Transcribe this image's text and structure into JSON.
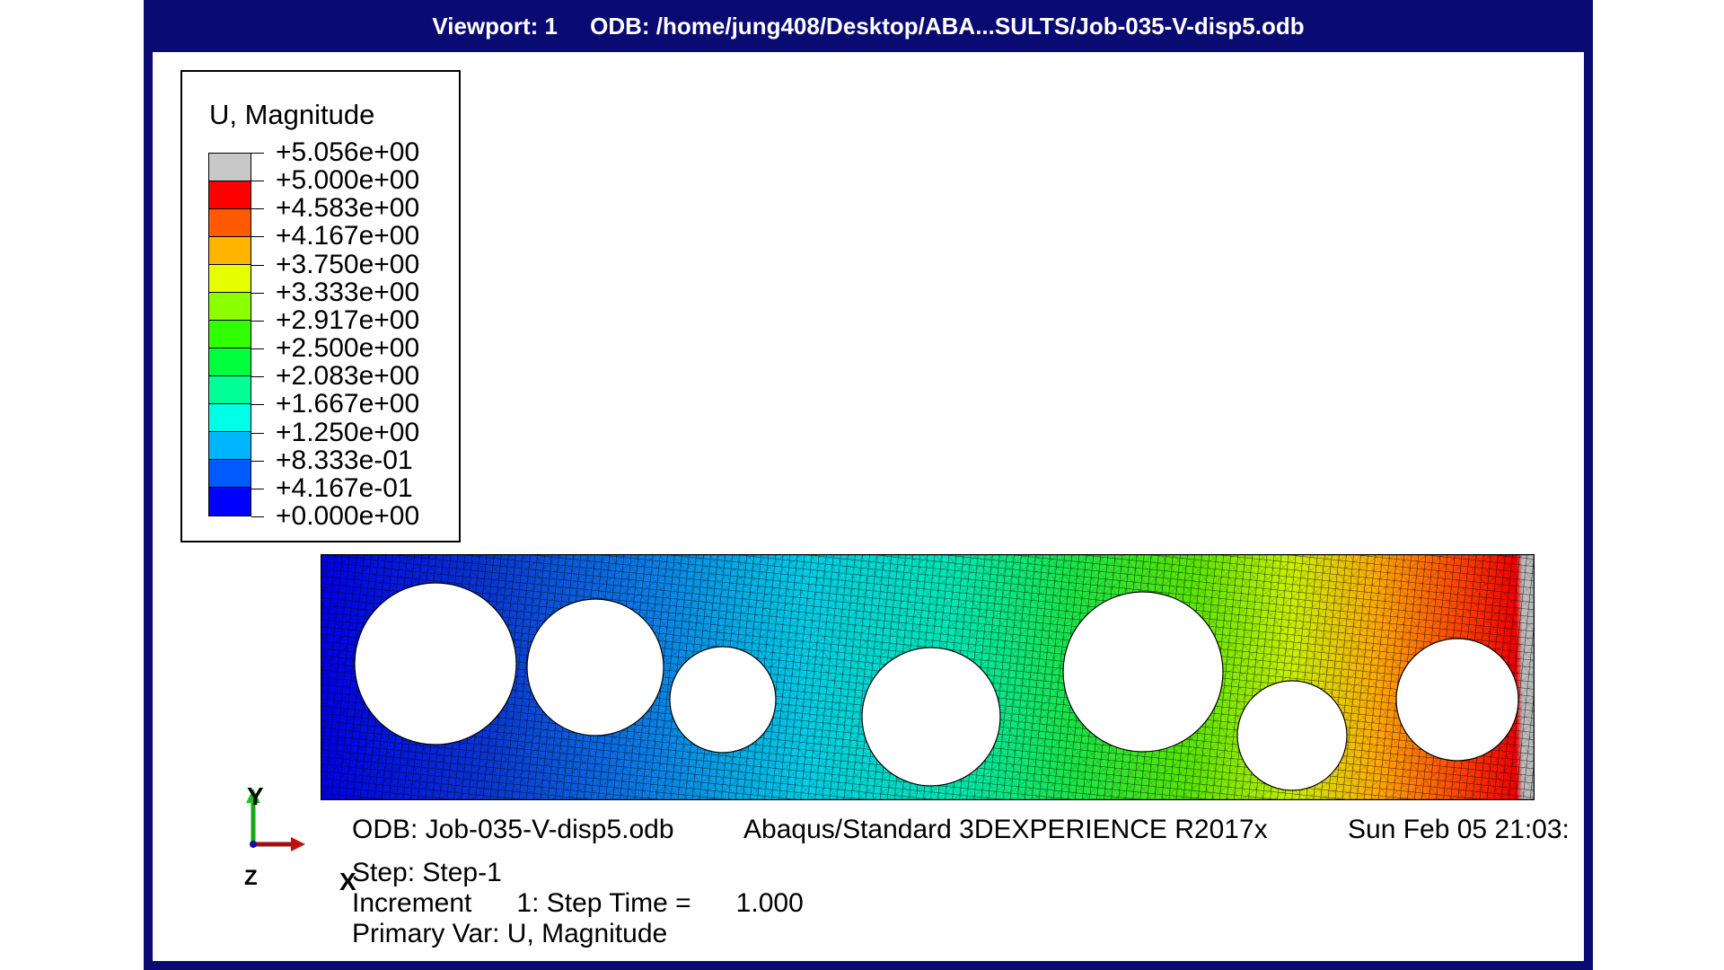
{
  "viewport": {
    "title": "Viewport: 1     ODB: /home/jung408/Desktop/ABA...SULTS/Job-035-V-disp5.odb",
    "frame_color": "#0a0a73"
  },
  "legend": {
    "title": "U, Magnitude",
    "labels": [
      "+5.056e+00",
      "+5.000e+00",
      "+4.583e+00",
      "+4.167e+00",
      "+3.750e+00",
      "+3.333e+00",
      "+2.917e+00",
      "+2.500e+00",
      "+2.083e+00",
      "+1.667e+00",
      "+1.250e+00",
      "+8.333e-01",
      "+4.167e-01",
      "+0.000e+00"
    ],
    "colors": [
      "#c8c8c8",
      "#ff0000",
      "#ff5a00",
      "#ffb400",
      "#e6ff00",
      "#8cff00",
      "#32ff00",
      "#00ff3c",
      "#00ff96",
      "#00ffe6",
      "#00b4ff",
      "#005aff",
      "#0000ff"
    ]
  },
  "model": {
    "field": "U, Magnitude",
    "min_value": 0.0,
    "max_value": 5.056,
    "hole_count": 7
  },
  "info": {
    "odb_line": "ODB: Job-035-V-disp5.odb",
    "solver_line": "Abaqus/Standard 3DEXPERIENCE R2017x",
    "date_line": "Sun Feb 05 21:03:",
    "step_line": "Step: Step-1",
    "increment_line": "Increment      1: Step Time =      1.000",
    "primary_var_line": "Primary Var: U, Magnitude"
  },
  "triad": {
    "x_label": "X",
    "y_label": "Y",
    "z_label": "Z"
  }
}
